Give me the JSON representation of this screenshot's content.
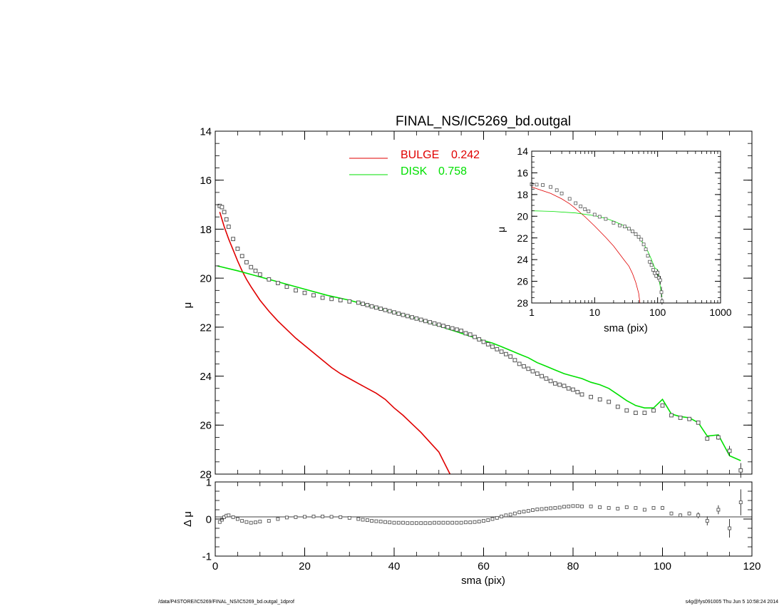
{
  "title": "FINAL_NS/IC5269_bd.outgal",
  "footer_left": "/data/P4STORE/IC5269/FINAL_NS/IC5269_bd.outgal_1dprof",
  "footer_right": "s4g@fys091005  Thu Jun  5 10:58:24 2014",
  "colors": {
    "bulge": "#e00000",
    "disk": "#00e000",
    "data": "#000000",
    "marker": "#555555"
  },
  "legend": [
    {
      "label": "BULGE",
      "value": "0.242",
      "color": "#e00000"
    },
    {
      "label": "DISK",
      "value": "0.758",
      "color": "#00e000"
    }
  ],
  "chart_data": [
    {
      "type": "scatter",
      "panel": "main",
      "xlabel": "",
      "ylabel": "μ",
      "xlim": [
        0,
        120
      ],
      "ylim": [
        28,
        14
      ],
      "y_inverted": true,
      "x_ticks": [
        "0",
        "20",
        "40",
        "60",
        "80",
        "100",
        "120"
      ],
      "y_ticks": [
        "14",
        "16",
        "18",
        "20",
        "22",
        "24",
        "26",
        "28"
      ],
      "series": [
        {
          "role": "data",
          "x": [
            1,
            1.5,
            2,
            2.5,
            3,
            4,
            5,
            6,
            7,
            8,
            9,
            10,
            12,
            14,
            16,
            18,
            20,
            22,
            24,
            26,
            28,
            30,
            32,
            33,
            34,
            35,
            36,
            37,
            38,
            39,
            40,
            41,
            42,
            43,
            44,
            45,
            46,
            47,
            48,
            49,
            50,
            51,
            52,
            53,
            54,
            55,
            56,
            57,
            58,
            59,
            60,
            61,
            62,
            63,
            64,
            65,
            66,
            67,
            68,
            69,
            70,
            71,
            72,
            73,
            74,
            75,
            76,
            77,
            78,
            79,
            80,
            81,
            82,
            84,
            86,
            88,
            90,
            92,
            94,
            96,
            98,
            100,
            102,
            104,
            106,
            108,
            110,
            112.5,
            115,
            117.5
          ],
          "y": [
            17.05,
            17.1,
            17.3,
            17.6,
            17.9,
            18.4,
            18.8,
            19.1,
            19.35,
            19.55,
            19.7,
            19.85,
            20.05,
            20.2,
            20.35,
            20.5,
            20.6,
            20.7,
            20.8,
            20.85,
            20.9,
            20.95,
            21.0,
            21.05,
            21.1,
            21.15,
            21.2,
            21.25,
            21.3,
            21.35,
            21.4,
            21.45,
            21.5,
            21.55,
            21.6,
            21.65,
            21.7,
            21.75,
            21.8,
            21.85,
            21.9,
            21.95,
            22.0,
            22.05,
            22.1,
            22.15,
            22.25,
            22.3,
            22.4,
            22.5,
            22.6,
            22.7,
            22.8,
            22.9,
            23.0,
            23.1,
            23.2,
            23.35,
            23.5,
            23.6,
            23.7,
            23.8,
            23.9,
            24.0,
            24.1,
            24.2,
            24.3,
            24.35,
            24.4,
            24.5,
            24.55,
            24.65,
            24.75,
            24.85,
            24.95,
            25.05,
            25.25,
            25.4,
            25.5,
            25.5,
            25.4,
            25.2,
            25.6,
            25.7,
            25.75,
            25.9,
            26.55,
            26.5,
            27.05,
            27.85
          ],
          "errors": [
            0.02,
            0.02,
            0.02,
            0.02,
            0.02,
            0.02,
            0.02,
            0.02,
            0.02,
            0.02,
            0.02,
            0.02,
            0.02,
            0.02,
            0.02,
            0.02,
            0.02,
            0.02,
            0.02,
            0.02,
            0.02,
            0.02,
            0.02,
            0.02,
            0.02,
            0.02,
            0.02,
            0.02,
            0.02,
            0.02,
            0.02,
            0.02,
            0.02,
            0.02,
            0.02,
            0.02,
            0.02,
            0.02,
            0.02,
            0.02,
            0.02,
            0.02,
            0.02,
            0.02,
            0.02,
            0.02,
            0.02,
            0.02,
            0.02,
            0.02,
            0.02,
            0.02,
            0.02,
            0.02,
            0.02,
            0.02,
            0.02,
            0.02,
            0.02,
            0.02,
            0.02,
            0.02,
            0.02,
            0.02,
            0.02,
            0.02,
            0.02,
            0.02,
            0.02,
            0.02,
            0.02,
            0.02,
            0.02,
            0.02,
            0.02,
            0.02,
            0.02,
            0.02,
            0.02,
            0.02,
            0.02,
            0.05,
            0.05,
            0.05,
            0.05,
            0.05,
            0.08,
            0.1,
            0.2,
            0.3
          ]
        },
        {
          "role": "bulge",
          "x": [
            1,
            2,
            3,
            4,
            5,
            6,
            7,
            8,
            10,
            12,
            14,
            16,
            18,
            20,
            22,
            24,
            26,
            28,
            30,
            32,
            34,
            36,
            38,
            40,
            42,
            44,
            46,
            48,
            50,
            52.5
          ],
          "y": [
            17.3,
            17.9,
            18.4,
            18.85,
            19.3,
            19.7,
            20.05,
            20.35,
            20.9,
            21.35,
            21.75,
            22.1,
            22.45,
            22.75,
            23.05,
            23.35,
            23.65,
            23.9,
            24.1,
            24.3,
            24.5,
            24.7,
            24.95,
            25.3,
            25.6,
            25.95,
            26.3,
            26.7,
            27.1,
            28.0
          ]
        },
        {
          "role": "disk",
          "x": [
            0.5,
            5,
            10,
            15,
            20,
            25,
            30,
            35,
            40,
            45,
            50,
            55,
            60,
            62,
            64,
            66,
            68,
            70,
            72,
            74,
            76,
            78,
            80,
            82,
            84,
            86,
            88,
            90,
            92,
            94,
            96,
            98,
            100,
            102,
            104,
            106,
            108,
            110,
            112.5,
            115,
            117.5
          ],
          "y": [
            19.5,
            19.7,
            19.95,
            20.2,
            20.45,
            20.7,
            20.9,
            21.15,
            21.4,
            21.65,
            21.95,
            22.25,
            22.55,
            22.65,
            22.8,
            22.95,
            23.1,
            23.25,
            23.45,
            23.6,
            23.75,
            23.9,
            24.0,
            24.1,
            24.25,
            24.35,
            24.5,
            24.75,
            25.0,
            25.2,
            25.3,
            25.3,
            24.95,
            25.55,
            25.65,
            25.7,
            25.9,
            26.45,
            26.4,
            27.25,
            27.45
          ]
        }
      ]
    },
    {
      "type": "scatter",
      "panel": "residual",
      "xlabel": "sma (pix)",
      "ylabel": "Δ μ",
      "xlim": [
        0,
        120
      ],
      "ylim": [
        -1,
        1
      ],
      "x_ticks": [
        "0",
        "20",
        "40",
        "60",
        "80",
        "100",
        "120"
      ],
      "y_ticks": [
        "1",
        "0",
        "-1"
      ],
      "series": [
        {
          "role": "residual",
          "x": [
            1,
            1.5,
            2,
            2.5,
            3,
            4,
            5,
            6,
            7,
            8,
            9,
            10,
            12,
            14,
            16,
            18,
            20,
            22,
            24,
            26,
            28,
            30,
            32,
            33,
            34,
            35,
            36,
            37,
            38,
            39,
            40,
            41,
            42,
            43,
            44,
            45,
            46,
            47,
            48,
            49,
            50,
            51,
            52,
            53,
            54,
            55,
            56,
            57,
            58,
            59,
            60,
            61,
            62,
            63,
            64,
            65,
            66,
            67,
            68,
            69,
            70,
            71,
            72,
            73,
            74,
            75,
            76,
            77,
            78,
            79,
            80,
            81,
            82,
            84,
            86,
            88,
            90,
            92,
            94,
            96,
            98,
            100,
            102,
            104,
            106,
            108,
            110,
            112.5,
            115,
            117.5
          ],
          "y": [
            -0.08,
            -0.02,
            0.05,
            0.09,
            0.1,
            0.05,
            0.0,
            -0.05,
            -0.08,
            -0.1,
            -0.09,
            -0.07,
            -0.05,
            0.0,
            0.04,
            0.05,
            0.06,
            0.07,
            0.07,
            0.06,
            0.05,
            0.03,
            0.0,
            -0.02,
            -0.03,
            -0.05,
            -0.06,
            -0.07,
            -0.08,
            -0.09,
            -0.1,
            -0.1,
            -0.1,
            -0.11,
            -0.11,
            -0.11,
            -0.11,
            -0.11,
            -0.11,
            -0.1,
            -0.1,
            -0.1,
            -0.1,
            -0.1,
            -0.1,
            -0.1,
            -0.09,
            -0.09,
            -0.08,
            -0.07,
            -0.05,
            -0.03,
            0.0,
            0.03,
            0.07,
            0.1,
            0.12,
            0.15,
            0.18,
            0.2,
            0.22,
            0.24,
            0.26,
            0.27,
            0.28,
            0.29,
            0.3,
            0.31,
            0.33,
            0.34,
            0.35,
            0.35,
            0.34,
            0.34,
            0.32,
            0.3,
            0.28,
            0.32,
            0.3,
            0.25,
            0.3,
            0.3,
            0.15,
            0.1,
            0.15,
            0.1,
            -0.05,
            0.25,
            -0.25,
            0.45
          ],
          "errors": [
            0.02,
            0.02,
            0.02,
            0.02,
            0.02,
            0.02,
            0.02,
            0.02,
            0.02,
            0.02,
            0.02,
            0.02,
            0.02,
            0.02,
            0.02,
            0.02,
            0.02,
            0.02,
            0.02,
            0.02,
            0.02,
            0.02,
            0.02,
            0.02,
            0.02,
            0.02,
            0.02,
            0.02,
            0.02,
            0.02,
            0.02,
            0.02,
            0.02,
            0.02,
            0.02,
            0.02,
            0.02,
            0.02,
            0.02,
            0.02,
            0.02,
            0.02,
            0.02,
            0.02,
            0.02,
            0.02,
            0.02,
            0.02,
            0.02,
            0.02,
            0.02,
            0.02,
            0.02,
            0.02,
            0.02,
            0.02,
            0.02,
            0.02,
            0.02,
            0.02,
            0.02,
            0.02,
            0.02,
            0.02,
            0.02,
            0.02,
            0.02,
            0.02,
            0.02,
            0.02,
            0.02,
            0.02,
            0.02,
            0.02,
            0.02,
            0.02,
            0.02,
            0.02,
            0.02,
            0.02,
            0.02,
            0.05,
            0.05,
            0.05,
            0.05,
            0.08,
            0.12,
            0.12,
            0.25,
            0.35
          ]
        }
      ]
    },
    {
      "type": "scatter",
      "panel": "inset",
      "xscale": "log",
      "xlabel": "sma (pix)",
      "ylabel": "μ",
      "xlim": [
        1,
        1000
      ],
      "ylim": [
        28,
        14
      ],
      "y_inverted": true,
      "x_ticks": [
        "1",
        "10",
        "100",
        "1000"
      ],
      "y_ticks": [
        "14",
        "16",
        "18",
        "20",
        "22",
        "24",
        "26",
        "28"
      ],
      "series": [
        {
          "role": "data",
          "x": [
            1,
            1.2,
            1.5,
            2,
            2.5,
            3,
            4,
            5,
            6,
            7,
            8,
            10,
            12,
            15,
            20,
            25,
            30,
            35,
            40,
            45,
            50,
            55,
            60,
            65,
            70,
            75,
            80,
            85,
            90,
            95,
            100,
            105,
            110,
            115,
            117.5
          ],
          "y": [
            17.05,
            17.08,
            17.12,
            17.3,
            17.6,
            17.9,
            18.4,
            18.8,
            19.1,
            19.35,
            19.55,
            19.85,
            20.05,
            20.25,
            20.6,
            20.85,
            20.95,
            21.15,
            21.4,
            21.65,
            21.9,
            22.15,
            22.6,
            23.05,
            23.65,
            24.2,
            24.5,
            24.95,
            25.25,
            25.5,
            25.2,
            25.7,
            25.9,
            27.0,
            27.85
          ],
          "errors": [
            0.02,
            0.02,
            0.02,
            0.02,
            0.02,
            0.02,
            0.02,
            0.02,
            0.02,
            0.02,
            0.02,
            0.02,
            0.02,
            0.02,
            0.02,
            0.02,
            0.02,
            0.02,
            0.02,
            0.02,
            0.02,
            0.02,
            0.02,
            0.02,
            0.02,
            0.02,
            0.02,
            0.05,
            0.1,
            0.2,
            0.3,
            0.3,
            0.4,
            0.5,
            0.3
          ]
        },
        {
          "role": "bulge",
          "x": [
            1,
            2,
            3,
            4,
            5,
            7,
            10,
            15,
            20,
            25,
            30,
            35,
            40,
            45,
            50,
            52.5
          ],
          "y": [
            17.3,
            17.9,
            18.4,
            18.85,
            19.3,
            20.05,
            20.9,
            21.95,
            22.75,
            23.5,
            24.1,
            24.6,
            25.3,
            26.1,
            27.1,
            28.0
          ]
        },
        {
          "role": "disk",
          "x": [
            1,
            2,
            5,
            10,
            15,
            20,
            30,
            40,
            50,
            60,
            70,
            80,
            90,
            100,
            110,
            117.5
          ],
          "y": [
            19.5,
            19.55,
            19.7,
            19.95,
            20.2,
            20.45,
            20.9,
            21.4,
            21.95,
            22.55,
            23.25,
            24.0,
            24.75,
            24.95,
            26.45,
            27.45
          ]
        }
      ]
    }
  ]
}
